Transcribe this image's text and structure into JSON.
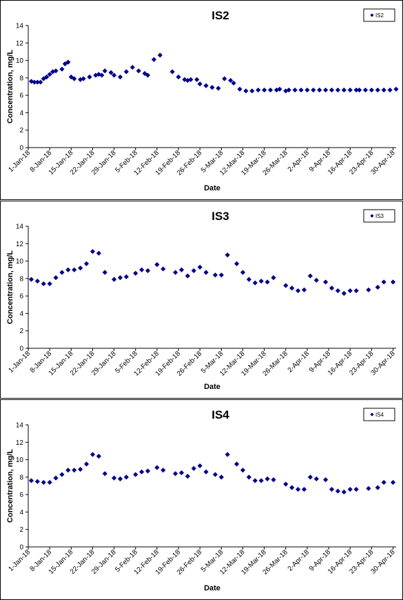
{
  "chart_data": [
    {
      "type": "scatter",
      "title": "IS2",
      "xlabel": "Date",
      "ylabel": "Concentration, mg/L",
      "ylim": [
        0,
        14
      ],
      "yticks": [
        0,
        2,
        4,
        6,
        8,
        10,
        12,
        14
      ],
      "xlim": [
        "2018-01-01",
        "2018-05-01"
      ],
      "xticks": [
        "1-Jan-18",
        "8-Jan-18",
        "15-Jan-18",
        "22-Jan-18",
        "29-Jan-18",
        "5-Feb-18",
        "12-Feb-18",
        "19-Feb-18",
        "26-Feb-18",
        "5-Mar-18",
        "12-Mar-18",
        "19-Mar-18",
        "26-Mar-18",
        "2-Apr-18",
        "9-Apr-18",
        "16-Apr-18",
        "23-Apr-18",
        "30-Apr-18"
      ],
      "grid": false,
      "legend_position": "top-right",
      "color": "#00008B",
      "series": [
        {
          "name": "IS2",
          "x": [
            "2018-01-02",
            "2018-01-03",
            "2018-01-04",
            "2018-01-05",
            "2018-01-06",
            "2018-01-07",
            "2018-01-08",
            "2018-01-09",
            "2018-01-10",
            "2018-01-12",
            "2018-01-13",
            "2018-01-14",
            "2018-01-15",
            "2018-01-16",
            "2018-01-18",
            "2018-01-19",
            "2018-01-21",
            "2018-01-23",
            "2018-01-24",
            "2018-01-25",
            "2018-01-26",
            "2018-01-28",
            "2018-01-29",
            "2018-01-31",
            "2018-02-02",
            "2018-02-04",
            "2018-02-06",
            "2018-02-08",
            "2018-02-09",
            "2018-02-11",
            "2018-02-13",
            "2018-02-17",
            "2018-02-19",
            "2018-02-21",
            "2018-02-22",
            "2018-02-23",
            "2018-02-25",
            "2018-02-26",
            "2018-02-28",
            "2018-03-02",
            "2018-03-04",
            "2018-03-06",
            "2018-03-08",
            "2018-03-09",
            "2018-03-11",
            "2018-03-13",
            "2018-03-15",
            "2018-03-17",
            "2018-03-19",
            "2018-03-21",
            "2018-03-23",
            "2018-03-24",
            "2018-03-26",
            "2018-03-27",
            "2018-03-29",
            "2018-03-31",
            "2018-04-02",
            "2018-04-04",
            "2018-04-06",
            "2018-04-08",
            "2018-04-10",
            "2018-04-12",
            "2018-04-14",
            "2018-04-16",
            "2018-04-18",
            "2018-04-19",
            "2018-04-21",
            "2018-04-23",
            "2018-04-25",
            "2018-04-27",
            "2018-04-29",
            "2018-05-01"
          ],
          "y": [
            7.6,
            7.5,
            7.5,
            7.5,
            7.9,
            8.1,
            8.4,
            8.7,
            8.8,
            9.0,
            9.6,
            9.8,
            8.1,
            7.9,
            7.8,
            7.9,
            8.1,
            8.3,
            8.4,
            8.3,
            8.8,
            8.6,
            8.3,
            8.1,
            8.7,
            9.2,
            8.8,
            8.5,
            8.3,
            10.1,
            10.6,
            8.7,
            8.1,
            7.8,
            7.7,
            7.8,
            7.8,
            7.3,
            7.1,
            6.9,
            6.8,
            7.9,
            7.7,
            7.4,
            6.7,
            6.5,
            6.5,
            6.6,
            6.6,
            6.6,
            6.6,
            6.7,
            6.5,
            6.6,
            6.6,
            6.6,
            6.6,
            6.6,
            6.6,
            6.6,
            6.6,
            6.6,
            6.6,
            6.6,
            6.6,
            6.6,
            6.6,
            6.6,
            6.6,
            6.6,
            6.6,
            6.7
          ]
        }
      ]
    },
    {
      "type": "scatter",
      "title": "IS3",
      "xlabel": "Date",
      "ylabel": "Concentration, mg/L",
      "ylim": [
        0,
        14
      ],
      "yticks": [
        0,
        2,
        4,
        6,
        8,
        10,
        12,
        14
      ],
      "xlim": [
        "2018-01-01",
        "2018-05-01"
      ],
      "xticks": [
        "1-Jan-18",
        "8-Jan-18",
        "15-Jan-18",
        "22-Jan-18",
        "29-Jan-18",
        "5-Feb-18",
        "12-Feb-18",
        "19-Feb-18",
        "26-Feb-18",
        "5-Mar-18",
        "12-Mar-18",
        "19-Mar-18",
        "26-Mar-18",
        "2-Apr-18",
        "9-Apr-18",
        "16-Apr-18",
        "23-Apr-18",
        "30-Apr-18"
      ],
      "grid": false,
      "legend_position": "top-right",
      "color": "#00008B",
      "series": [
        {
          "name": "IS3",
          "x": [
            "2018-01-02",
            "2018-01-04",
            "2018-01-06",
            "2018-01-08",
            "2018-01-10",
            "2018-01-12",
            "2018-01-14",
            "2018-01-16",
            "2018-01-18",
            "2018-01-20",
            "2018-01-22",
            "2018-01-24",
            "2018-01-26",
            "2018-01-29",
            "2018-01-31",
            "2018-02-02",
            "2018-02-05",
            "2018-02-07",
            "2018-02-09",
            "2018-02-12",
            "2018-02-14",
            "2018-02-18",
            "2018-02-20",
            "2018-02-22",
            "2018-02-24",
            "2018-02-26",
            "2018-02-28",
            "2018-03-03",
            "2018-03-05",
            "2018-03-07",
            "2018-03-10",
            "2018-03-12",
            "2018-03-14",
            "2018-03-16",
            "2018-03-18",
            "2018-03-20",
            "2018-03-22",
            "2018-03-26",
            "2018-03-28",
            "2018-03-30",
            "2018-04-01",
            "2018-04-03",
            "2018-04-05",
            "2018-04-08",
            "2018-04-10",
            "2018-04-12",
            "2018-04-14",
            "2018-04-16",
            "2018-04-18",
            "2018-04-22",
            "2018-04-25",
            "2018-04-27",
            "2018-04-30"
          ],
          "y": [
            7.9,
            7.7,
            7.4,
            7.4,
            8.1,
            8.7,
            9.0,
            9.0,
            9.2,
            9.7,
            11.1,
            10.9,
            8.7,
            7.9,
            8.1,
            8.2,
            8.6,
            9.0,
            8.9,
            9.6,
            9.1,
            8.7,
            9.0,
            8.3,
            8.9,
            9.3,
            8.7,
            8.4,
            8.4,
            10.7,
            9.7,
            8.7,
            7.9,
            7.5,
            7.7,
            7.6,
            8.1,
            7.2,
            6.9,
            6.6,
            6.7,
            8.3,
            7.8,
            7.6,
            6.9,
            6.6,
            6.3,
            6.6,
            6.6,
            6.7,
            7.0,
            7.6,
            7.6
          ]
        }
      ]
    },
    {
      "type": "scatter",
      "title": "IS4",
      "xlabel": "Date",
      "ylabel": "Concentration, mg/L",
      "ylim": [
        0,
        14
      ],
      "yticks": [
        0,
        2,
        4,
        6,
        8,
        10,
        12,
        14
      ],
      "xlim": [
        "2018-01-01",
        "2018-05-01"
      ],
      "xticks": [
        "1-Jan-18",
        "8-Jan-18",
        "15-Jan-18",
        "22-Jan-18",
        "29-Jan-18",
        "5-Feb-18",
        "12-Feb-18",
        "19-Feb-18",
        "26-Feb-18",
        "5-Mar-18",
        "12-Mar-18",
        "19-Mar-18",
        "26-Mar-18",
        "2-Apr-18",
        "9-Apr-18",
        "16-Apr-18",
        "23-Apr-18",
        "30-Apr-18"
      ],
      "grid": false,
      "legend_position": "top-right",
      "color": "#00008B",
      "series": [
        {
          "name": "IS4",
          "x": [
            "2018-01-02",
            "2018-01-04",
            "2018-01-06",
            "2018-01-08",
            "2018-01-10",
            "2018-01-12",
            "2018-01-14",
            "2018-01-16",
            "2018-01-18",
            "2018-01-20",
            "2018-01-22",
            "2018-01-24",
            "2018-01-26",
            "2018-01-29",
            "2018-01-31",
            "2018-02-02",
            "2018-02-05",
            "2018-02-07",
            "2018-02-09",
            "2018-02-12",
            "2018-02-14",
            "2018-02-18",
            "2018-02-20",
            "2018-02-22",
            "2018-02-24",
            "2018-02-26",
            "2018-02-28",
            "2018-03-03",
            "2018-03-05",
            "2018-03-07",
            "2018-03-10",
            "2018-03-12",
            "2018-03-14",
            "2018-03-16",
            "2018-03-18",
            "2018-03-20",
            "2018-03-22",
            "2018-03-26",
            "2018-03-28",
            "2018-03-30",
            "2018-04-01",
            "2018-04-03",
            "2018-04-05",
            "2018-04-08",
            "2018-04-10",
            "2018-04-12",
            "2018-04-14",
            "2018-04-16",
            "2018-04-18",
            "2018-04-22",
            "2018-04-25",
            "2018-04-27",
            "2018-04-30"
          ],
          "y": [
            7.6,
            7.5,
            7.4,
            7.4,
            7.9,
            8.3,
            8.8,
            8.8,
            8.9,
            9.5,
            10.6,
            10.4,
            8.4,
            7.9,
            7.8,
            8.0,
            8.3,
            8.6,
            8.7,
            9.1,
            8.8,
            8.4,
            8.5,
            8.1,
            9.0,
            9.3,
            8.6,
            8.3,
            8.0,
            10.6,
            9.5,
            8.8,
            8.0,
            7.6,
            7.6,
            7.8,
            7.7,
            7.2,
            6.8,
            6.6,
            6.6,
            8.0,
            7.8,
            7.7,
            6.6,
            6.4,
            6.3,
            6.6,
            6.6,
            6.7,
            6.8,
            7.4,
            7.4
          ]
        }
      ]
    }
  ]
}
